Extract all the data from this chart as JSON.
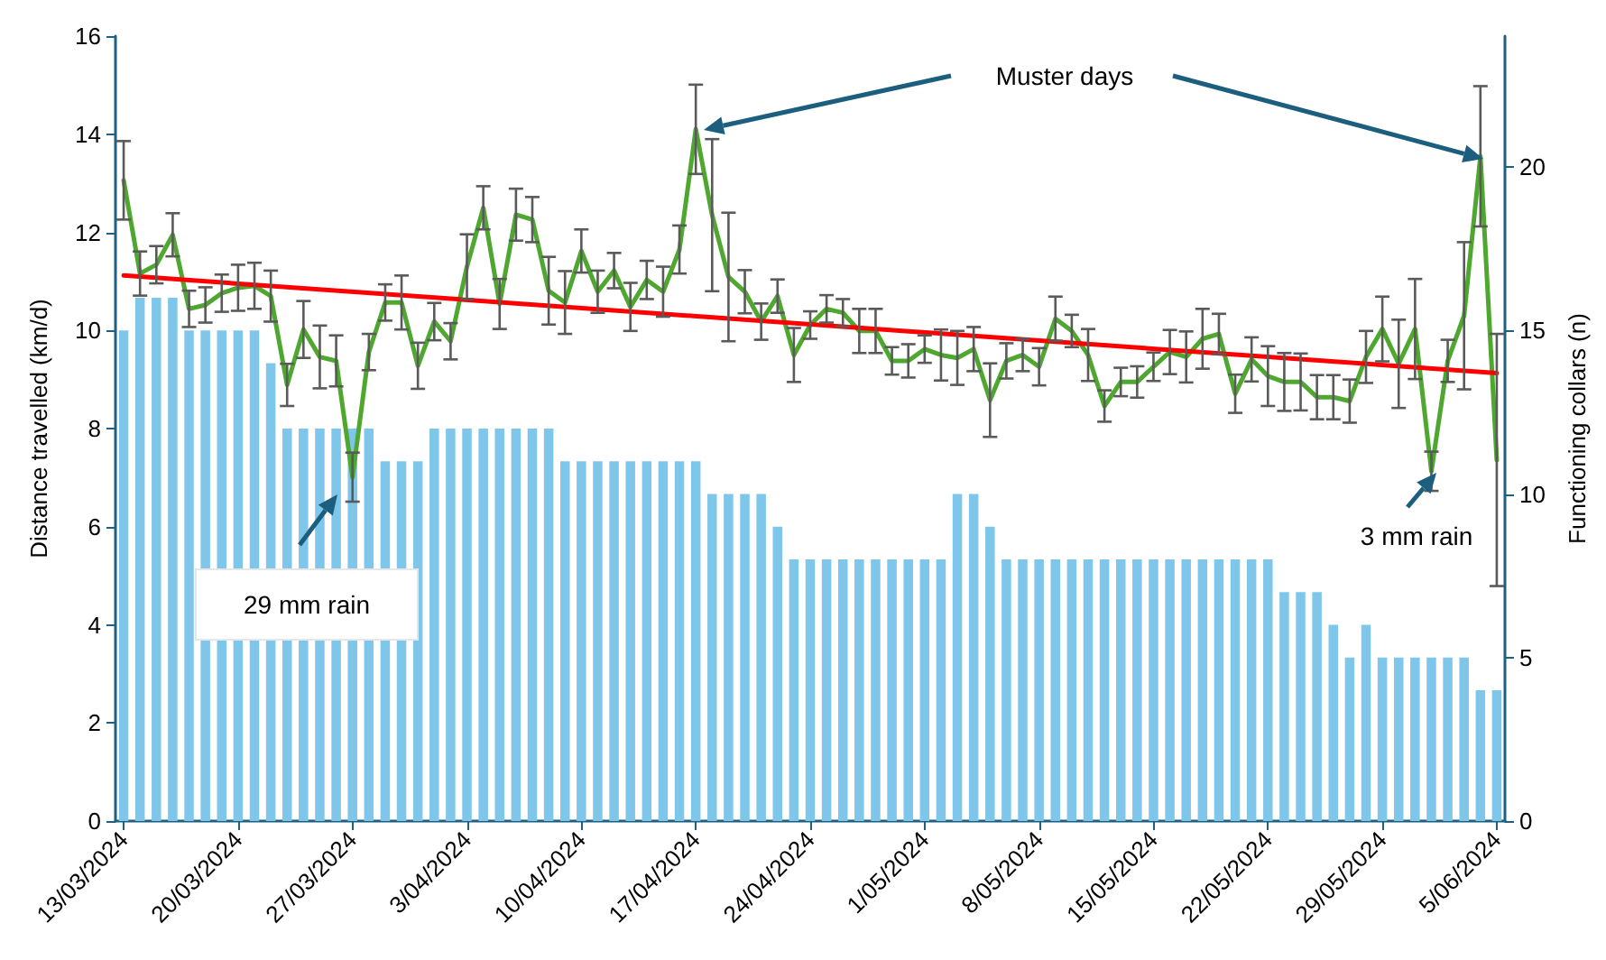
{
  "chart_data": {
    "type": "bar",
    "categories": [
      "13/03/2024",
      null,
      null,
      null,
      null,
      null,
      null,
      "20/03/2024",
      null,
      null,
      null,
      null,
      null,
      null,
      "27/03/2024",
      null,
      null,
      null,
      null,
      null,
      null,
      "3/04/2024",
      null,
      null,
      null,
      null,
      null,
      null,
      "10/04/2024",
      null,
      null,
      null,
      null,
      null,
      null,
      "17/04/2024",
      null,
      null,
      null,
      null,
      null,
      null,
      "24/04/2024",
      null,
      null,
      null,
      null,
      null,
      null,
      "1/05/2024",
      null,
      null,
      null,
      null,
      null,
      null,
      "8/05/2024",
      null,
      null,
      null,
      null,
      null,
      null,
      "15/05/2024",
      null,
      null,
      null,
      null,
      null,
      null,
      "22/05/2024",
      null,
      null,
      null,
      null,
      null,
      null,
      "29/05/2024",
      null,
      null,
      null,
      null,
      null,
      null,
      "5/06/2024"
    ],
    "ylabel": "Distance travelled (km/d)",
    "y2label": "Functioning collars (n)",
    "ylim": [
      0,
      16
    ],
    "yticks": [
      0,
      2,
      4,
      6,
      8,
      10,
      12,
      14,
      16
    ],
    "y2lim": [
      0,
      24
    ],
    "y2ticks": [
      0,
      5,
      10,
      15,
      20
    ],
    "grid": false,
    "marker": "none",
    "annotations": [
      "29 mm rain",
      "Muster days",
      "3 mm rain"
    ],
    "series": [
      {
        "axis": "y2",
        "color": "#7fc7ea",
        "values": [
          15,
          16,
          16,
          16,
          15,
          15,
          15,
          15,
          15,
          14,
          12,
          12,
          12,
          12,
          12,
          12,
          11,
          11,
          11,
          12,
          12,
          12,
          12,
          12,
          12,
          12,
          12,
          11,
          11,
          11,
          11,
          11,
          11,
          11,
          11,
          11,
          10,
          10,
          10,
          10,
          9,
          8,
          8,
          8,
          8,
          8,
          8,
          8,
          8,
          8,
          8,
          10,
          10,
          9,
          8,
          8,
          8,
          8,
          8,
          8,
          8,
          8,
          8,
          8,
          8,
          8,
          8,
          8,
          8,
          8,
          8,
          7,
          7,
          7,
          6,
          5,
          6,
          5,
          5,
          5,
          5,
          5,
          5,
          4,
          4
        ]
      },
      {
        "type": "line",
        "color": "#4ea72e",
        "values": [
          13.06,
          11.16,
          11.34,
          11.95,
          10.44,
          10.52,
          10.76,
          10.87,
          10.91,
          10.7,
          8.89,
          10.02,
          9.46,
          9.38,
          7.01,
          9.56,
          10.57,
          10.57,
          9.28,
          10.18,
          9.78,
          11.3,
          12.5,
          10.54,
          12.36,
          12.26,
          10.81,
          10.57,
          11.62,
          10.79,
          11.22,
          10.48,
          11.03,
          10.79,
          11.65,
          14.1,
          12.35,
          11.09,
          10.79,
          10.18,
          10.7,
          9.5,
          10.11,
          10.44,
          10.36,
          9.99,
          9.99,
          9.38,
          9.38,
          9.62,
          9.5,
          9.44,
          9.62,
          8.58,
          9.38,
          9.5,
          9.26,
          10.24,
          9.99,
          9.5,
          8.46,
          8.95,
          8.95,
          9.26,
          9.56,
          9.46,
          9.83,
          9.93,
          8.71,
          9.41,
          9.07,
          8.95,
          8.95,
          8.64,
          8.64,
          8.56,
          9.46,
          10.03,
          9.32,
          10.03,
          7.13,
          9.38,
          10.3,
          13.55,
          7.36
        ],
        "errors": [
          0.8,
          0.45,
          0.38,
          0.44,
          0.37,
          0.36,
          0.38,
          0.47,
          0.47,
          0.52,
          0.43,
          0.58,
          0.64,
          0.52,
          0.5,
          0.37,
          0.37,
          0.55,
          0.47,
          0.38,
          0.37,
          0.66,
          0.44,
          0.51,
          0.53,
          0.46,
          0.69,
          0.64,
          0.44,
          0.43,
          0.36,
          0.49,
          0.39,
          0.51,
          0.49,
          0.91,
          1.55,
          1.31,
          0.44,
          0.37,
          0.34,
          0.55,
          0.28,
          0.28,
          0.28,
          0.45,
          0.45,
          0.28,
          0.34,
          0.28,
          0.52,
          0.55,
          0.45,
          0.75,
          0.36,
          0.33,
          0.38,
          0.45,
          0.33,
          0.53,
          0.32,
          0.29,
          0.32,
          0.29,
          0.45,
          0.52,
          0.61,
          0.41,
          0.39,
          0.45,
          0.61,
          0.59,
          0.58,
          0.45,
          0.45,
          0.44,
          0.53,
          0.66,
          0.9,
          1.02,
          0.4,
          0.43,
          1.5,
          1.43,
          2.57
        ]
      },
      {
        "type": "line",
        "color": "#ff0000",
        "x": [
          "13/03/2024",
          "5/06/2024"
        ],
        "values": [
          11.12,
          9.13
        ]
      }
    ]
  }
}
